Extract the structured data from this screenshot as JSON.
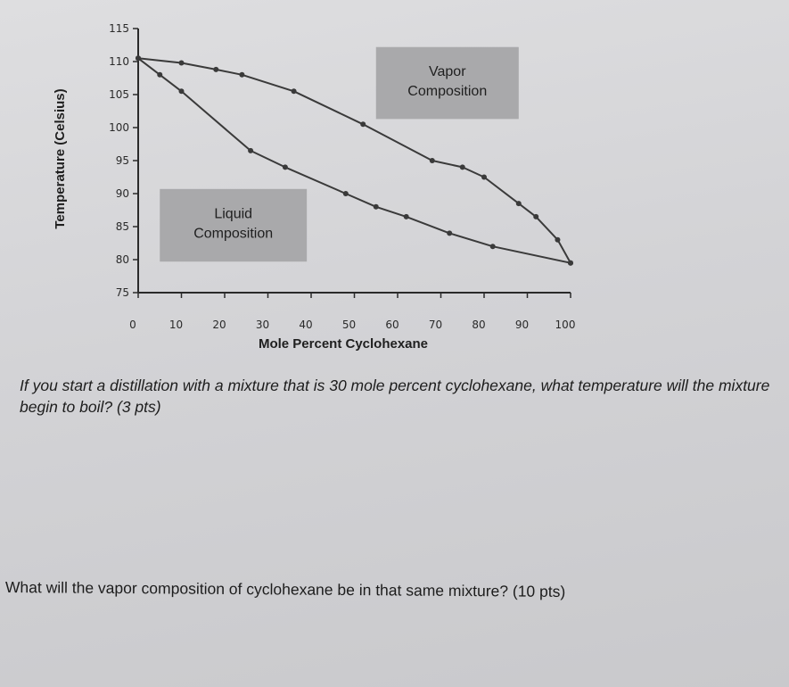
{
  "chart_data": {
    "type": "line",
    "xlabel": "Mole Percent Cyclohexane",
    "ylabel": "Temperature (Celsius)",
    "xlim": [
      0,
      100
    ],
    "ylim": [
      75,
      115
    ],
    "x_ticks": [
      "0",
      "10",
      "20",
      "30",
      "40",
      "50",
      "60",
      "70",
      "80",
      "90",
      "100"
    ],
    "y_ticks": [
      "75",
      "80",
      "85",
      "90",
      "95",
      "100",
      "105",
      "110",
      "115"
    ],
    "grid": false,
    "series": [
      {
        "name": "Vapor Composition",
        "color": "#3a3a3a",
        "points": [
          [
            0,
            110.5
          ],
          [
            10,
            109.8
          ],
          [
            18,
            108.8
          ],
          [
            24,
            108
          ],
          [
            36,
            105.5
          ],
          [
            52,
            100.5
          ],
          [
            68,
            95
          ],
          [
            75,
            94
          ],
          [
            80,
            92.5
          ],
          [
            88,
            88.5
          ],
          [
            92,
            86.5
          ],
          [
            97,
            83
          ],
          [
            100,
            79.5
          ]
        ]
      },
      {
        "name": "Liquid Composition",
        "color": "#3a3a3a",
        "points": [
          [
            0,
            110.5
          ],
          [
            5,
            108
          ],
          [
            10,
            105.5
          ],
          [
            26,
            96.5
          ],
          [
            34,
            94
          ],
          [
            48,
            90
          ],
          [
            55,
            88
          ],
          [
            62,
            86.5
          ],
          [
            72,
            84
          ],
          [
            82,
            82
          ],
          [
            100,
            79.5
          ]
        ]
      }
    ],
    "annotations": [
      {
        "text_lines": [
          "Vapor",
          "Composition"
        ],
        "fill": "#a9a9ab"
      },
      {
        "text_lines": [
          "Liquid",
          "Composition"
        ],
        "fill": "#a9a9ab"
      }
    ]
  },
  "questions": {
    "q1": "If you start a distillation with a mixture that is 30 mole percent cyclohexane, what temperature will the mixture begin to boil? (3 pts)",
    "q2": "What will the vapor composition of cyclohexane be in that same mixture? (10 pts)"
  }
}
